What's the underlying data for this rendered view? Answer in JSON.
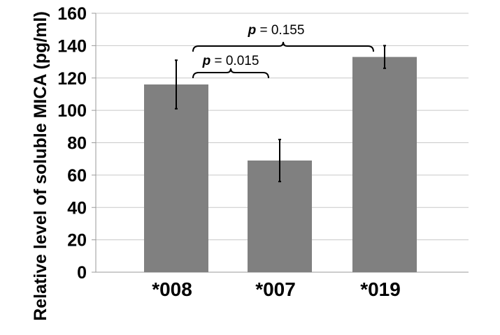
{
  "chart_data": {
    "type": "bar",
    "title": "",
    "xlabel": "",
    "ylabel": "Relative level of soluble MICA (pg/ml)",
    "categories": [
      "*008",
      "*007",
      "*019"
    ],
    "values": [
      116,
      69,
      133
    ],
    "error": [
      15,
      13,
      7
    ],
    "ylim": [
      0,
      160
    ],
    "yticks": [
      0,
      20,
      40,
      60,
      80,
      100,
      120,
      140,
      160
    ],
    "ytick_labels": [
      "0",
      "20",
      "40",
      "60",
      "80",
      "100",
      "120",
      "140",
      "160"
    ],
    "grid": true,
    "legend": "none",
    "bar_color": "#808080",
    "annotations": [
      {
        "from": 0,
        "to": 1,
        "p_label": "p",
        "value_text": " = 0.015"
      },
      {
        "from": 0,
        "to": 2,
        "p_label": "p",
        "value_text": " = 0.155"
      }
    ]
  }
}
